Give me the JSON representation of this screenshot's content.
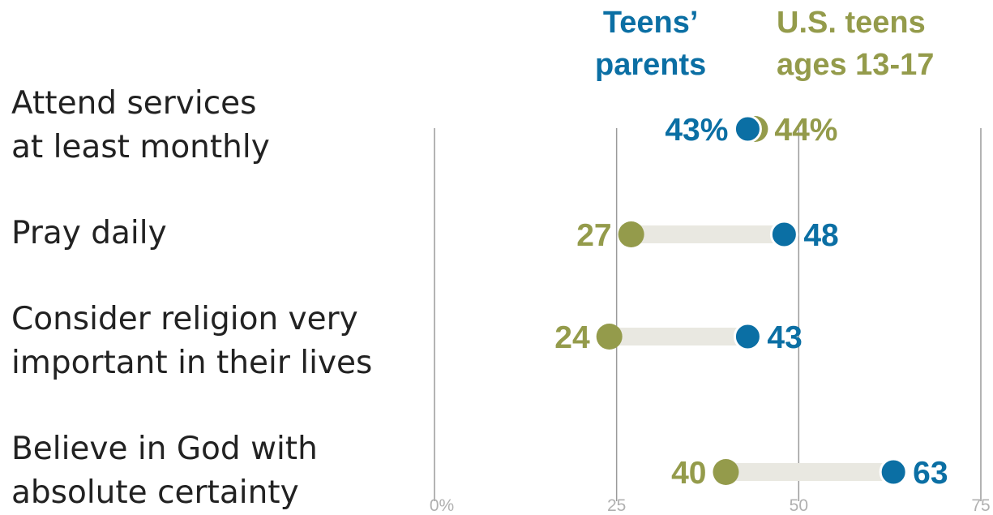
{
  "chart_data": {
    "type": "dot",
    "title": "",
    "xlabel": "",
    "ylabel": "",
    "xlim": [
      0,
      75
    ],
    "x_ticks": [
      {
        "value": 0,
        "label": "0%"
      },
      {
        "value": 25,
        "label": "25"
      },
      {
        "value": 50,
        "label": "50"
      },
      {
        "value": 75,
        "label": "75"
      }
    ],
    "grid": true,
    "legend": "top-right, as column headers above the dots",
    "categories": [
      [
        "Attend services",
        "at least monthly"
      ],
      [
        "Pray daily"
      ],
      [
        "Consider religion very",
        "important in their lives"
      ],
      [
        "Believe in God with",
        "absolute certainty"
      ]
    ],
    "series": [
      {
        "name": [
          "Teens’",
          "parents"
        ],
        "color": "#0b6fa4",
        "values": [
          43,
          48,
          43,
          63
        ],
        "labels": [
          "43%",
          "48",
          "43",
          "63"
        ]
      },
      {
        "name": [
          "U.S. teens",
          "ages 13-17"
        ],
        "color": "#949b4b",
        "values": [
          44,
          27,
          24,
          40
        ],
        "labels": [
          "44%",
          "27",
          "24",
          "40"
        ]
      }
    ],
    "connector_color": "#e9e8e1",
    "gridline_color": "#9a9a9a",
    "tick_label_color": "#b0b0b0"
  }
}
